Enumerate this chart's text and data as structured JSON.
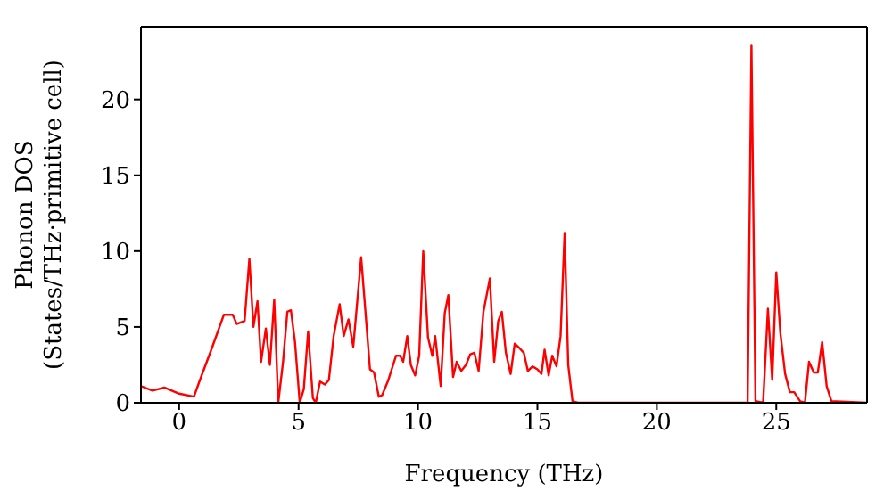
{
  "chart_data": {
    "type": "line",
    "xlabel": "Frequency (THz)",
    "ylabel": "Phonon DOS\n(States/THz·primitive cell)",
    "series": [
      {
        "color": "#ff0000",
        "x": [
          -1.6,
          -1.12,
          -0.62,
          0,
          0.62,
          0.87,
          1.37,
          1.87,
          2.24,
          2.41,
          2.74,
          2.94,
          3.11,
          3.28,
          3.43,
          3.63,
          3.8,
          3.98,
          4.15,
          4.35,
          4.53,
          4.68,
          4.85,
          5.05,
          5.22,
          5.4,
          5.6,
          5.72,
          5.9,
          6.1,
          6.27,
          6.47,
          6.72,
          6.89,
          7.09,
          7.29,
          7.62,
          7.99,
          8.16,
          8.36,
          8.5,
          8.76,
          9.08,
          9.25,
          9.38,
          9.55,
          9.7,
          9.88,
          10.05,
          10.22,
          10.42,
          10.6,
          10.72,
          10.95,
          11.12,
          11.27,
          11.47,
          11.62,
          11.81,
          12.01,
          12.19,
          12.36,
          12.54,
          12.74,
          13.01,
          13.19,
          13.36,
          13.51,
          13.68,
          13.88,
          14.05,
          14.25,
          14.43,
          14.6,
          14.8,
          15.0,
          15.17,
          15.3,
          15.47,
          15.62,
          15.8,
          15.97,
          16.14,
          16.29,
          16.47,
          16.7,
          23.8,
          23.96,
          24.13,
          24.45,
          24.65,
          24.83,
          25.0,
          25.17,
          25.37,
          25.57,
          25.75,
          26.0,
          26.2,
          26.37,
          26.57,
          26.74,
          26.92,
          27.11,
          27.31,
          28.8
        ],
        "values": [
          1.1,
          0.8,
          1.0,
          0.6,
          0.4,
          1.5,
          3.6,
          5.8,
          5.8,
          5.2,
          5.4,
          9.5,
          5.0,
          6.7,
          2.7,
          4.9,
          2.5,
          6.8,
          0,
          2.7,
          6.0,
          6.1,
          4.0,
          0,
          0.9,
          4.7,
          0.3,
          0,
          1.4,
          1.2,
          1.5,
          4.4,
          6.5,
          4.4,
          5.5,
          3.7,
          9.6,
          2.2,
          2.0,
          0.4,
          0.5,
          1.5,
          3.1,
          3.1,
          2.7,
          4.4,
          2.5,
          1.8,
          3.1,
          10.0,
          4.3,
          3.1,
          4.4,
          1.1,
          5.9,
          7.1,
          1.7,
          2.7,
          2.1,
          2.5,
          3.2,
          3.3,
          2.1,
          6.0,
          8.2,
          2.7,
          5.4,
          6.0,
          3.3,
          1.9,
          3.9,
          3.6,
          3.3,
          2.1,
          2.4,
          2.2,
          1.9,
          3.5,
          1.8,
          3.1,
          2.4,
          4.4,
          11.2,
          2.5,
          0.1,
          0,
          0,
          23.6,
          0.1,
          0,
          6.2,
          1.5,
          8.6,
          4.6,
          1.9,
          0.7,
          0.7,
          0.1,
          0,
          2.7,
          2.0,
          2.0,
          4.0,
          1.1,
          0.1,
          0
        ]
      }
    ],
    "xlim": [
      -1.6,
      28.8
    ],
    "xticks": [
      0,
      5,
      10,
      15,
      20,
      25
    ],
    "ylim": [
      0,
      24.8
    ],
    "yticks": [
      0,
      5,
      10,
      15,
      20
    ],
    "marker": "none",
    "line_style": "solid"
  }
}
